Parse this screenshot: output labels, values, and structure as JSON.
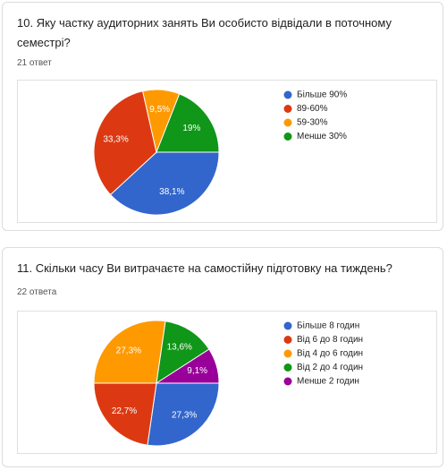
{
  "chart_data": [
    {
      "type": "pie",
      "title": "10. Яку частку аудиторних занять Ви особисто відвідали в поточному семестрі?",
      "subtitle": "21 ответ",
      "categories": [
        "Більше 90%",
        "89-60%",
        "59-30%",
        "Менше 30%"
      ],
      "values": [
        38.1,
        33.3,
        9.5,
        19
      ],
      "value_labels": [
        "38,1%",
        "33,3%",
        "9,5%",
        "19%"
      ],
      "colors": [
        "#3366cc",
        "#dc3912",
        "#ff9900",
        "#109618"
      ],
      "legend": "right"
    },
    {
      "type": "pie",
      "title": "11. Скільки часу Ви витрачаєте на самостійну підготовку на тиждень?",
      "subtitle": "22 ответа",
      "categories": [
        "Більше 8 годин",
        "Від 6 до 8 годин",
        "Від 4 до 6 годин",
        "Від 2 до 4 годин",
        "Менше 2 годин"
      ],
      "values": [
        27.3,
        22.7,
        27.3,
        13.6,
        9.1
      ],
      "value_labels": [
        "27,3%",
        "22,7%",
        "27,3%",
        "13,6%",
        "9,1%"
      ],
      "colors": [
        "#3366cc",
        "#dc3912",
        "#ff9900",
        "#109618",
        "#990099"
      ],
      "legend": "right"
    }
  ]
}
